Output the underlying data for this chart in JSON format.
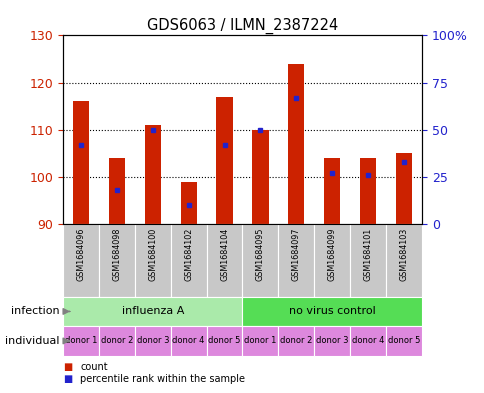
{
  "title": "GDS6063 / ILMN_2387224",
  "samples": [
    "GSM1684096",
    "GSM1684098",
    "GSM1684100",
    "GSM1684102",
    "GSM1684104",
    "GSM1684095",
    "GSM1684097",
    "GSM1684099",
    "GSM1684101",
    "GSM1684103"
  ],
  "count_values": [
    116,
    104,
    111,
    99,
    117,
    110,
    124,
    104,
    104,
    105
  ],
  "percentile_values": [
    42,
    18,
    50,
    10,
    42,
    50,
    67,
    27,
    26,
    33
  ],
  "ymin": 90,
  "ymax": 130,
  "yticks_left": [
    90,
    100,
    110,
    120,
    130
  ],
  "yticks_right": [
    0,
    25,
    50,
    75,
    100
  ],
  "infection_groups": [
    {
      "label": "influenza A",
      "start": 0,
      "end": 5,
      "color": "#AAEAAA"
    },
    {
      "label": "no virus control",
      "start": 5,
      "end": 10,
      "color": "#55DD55"
    }
  ],
  "individual_labels": [
    "donor 1",
    "donor 2",
    "donor 3",
    "donor 4",
    "donor 5",
    "donor 1",
    "donor 2",
    "donor 3",
    "donor 4",
    "donor 5"
  ],
  "individual_color": "#DD88DD",
  "bar_color": "#CC2200",
  "dot_color": "#2222CC",
  "left_label_color": "#CC2200",
  "right_label_color": "#2222CC",
  "grid_dotted_ticks": [
    100,
    110,
    120
  ],
  "bar_width": 0.45
}
